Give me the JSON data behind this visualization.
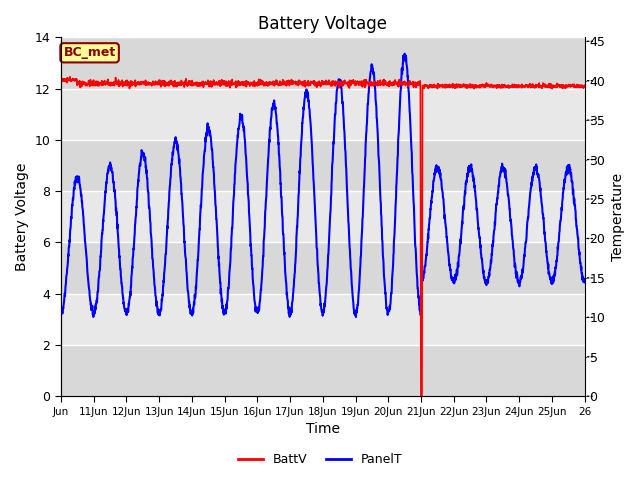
{
  "title": "Battery Voltage",
  "xlabel": "Time",
  "ylabel_left": "Battery Voltage",
  "ylabel_right": "Temperature",
  "ylim_left": [
    0,
    14
  ],
  "ylim_right": [
    0,
    45.5
  ],
  "yticks_left": [
    0,
    2,
    4,
    6,
    8,
    10,
    12,
    14
  ],
  "yticks_right": [
    0,
    5,
    10,
    15,
    20,
    25,
    30,
    35,
    40,
    45
  ],
  "xtick_labels": [
    "Jun",
    "11Jun",
    "12Jun",
    "13Jun",
    "14Jun",
    "15Jun",
    "16Jun",
    "17Jun",
    "18Jun",
    "19Jun",
    "20Jun",
    "21Jun",
    "22Jun",
    "23Jun",
    "24Jun",
    "25Jun",
    "26"
  ],
  "annotation_text": "BC_met",
  "annotation_color": "#8B0000",
  "annotation_bg": "#FFFF99",
  "bg_color": "#E8E8E8",
  "band_color": "#D0D0D0",
  "batt_color": "red",
  "panel_color": "blue",
  "legend_labels": [
    "BattV",
    "PanelT"
  ],
  "scale_lr": 0.30769
}
